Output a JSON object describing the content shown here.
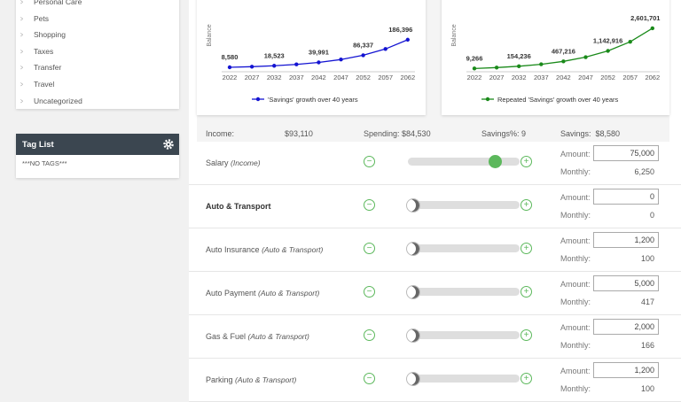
{
  "sidebar": {
    "categories": [
      "Personal Care",
      "Pets",
      "Shopping",
      "Taxes",
      "Transfer",
      "Travel",
      "Uncategorized"
    ],
    "tag_list": {
      "title": "Tag List",
      "empty": "***NO TAGS***"
    }
  },
  "chart_data": [
    {
      "type": "line",
      "y_label": "Balance",
      "categories": [
        "2022",
        "2027",
        "2032",
        "2037",
        "2042",
        "2047",
        "2052",
        "2057",
        "2062"
      ],
      "ylim": [
        0,
        500000
      ],
      "series": [
        {
          "name": "'Savings' growth over 40 years",
          "color": "#1414d2",
          "values": [
            8580,
            12607,
            18523,
            27215,
            39991,
            58760,
            86337,
            126852,
            186396
          ],
          "value_labels": [
            "8,580",
            null,
            "18,523",
            null,
            "39,991",
            null,
            "86,337",
            null,
            "186,396"
          ]
        }
      ]
    },
    {
      "type": "line",
      "y_label": "Balance",
      "categories": [
        "2022",
        "2027",
        "2032",
        "2037",
        "2042",
        "2047",
        "2052",
        "2057",
        "2062"
      ],
      "ylim": [
        0,
        5000000
      ],
      "series": [
        {
          "name": "Repeated 'Savings' growth over 40 years",
          "color": "#1a8a1a",
          "values": [
            9266,
            68000,
            154236,
            280000,
            467216,
            740000,
            1142916,
            1730000,
            2601701
          ],
          "value_labels": [
            "9,266",
            null,
            "154,236",
            null,
            "467,216",
            null,
            "1,142,916",
            null,
            "2,601,701"
          ]
        }
      ]
    }
  ],
  "summary": {
    "income_label": "Income:",
    "income": "$93,110",
    "spending": "Spending: $84,530",
    "savings_pct": "Savings%: 9",
    "savings": "Savings:  $8,580"
  },
  "amount_label": "Amount:",
  "monthly_label": "Monthly:",
  "rows": [
    {
      "name": "Salary",
      "category": "(Income)",
      "amount": "75,000",
      "monthly": "6,250"
    },
    {
      "name": "Auto & Transport",
      "amount": "0",
      "monthly": "0"
    },
    {
      "name": "Auto Insurance",
      "category": "(Auto & Transport)",
      "amount": "1,200",
      "monthly": "100"
    },
    {
      "name": "Auto Payment",
      "category": "(Auto & Transport)",
      "amount": "5,000",
      "monthly": "417"
    },
    {
      "name": "Gas & Fuel",
      "category": "(Auto & Transport)",
      "amount": "2,000",
      "monthly": "166"
    },
    {
      "name": "Parking",
      "category": "(Auto & Transport)",
      "amount": "1,200",
      "monthly": "100"
    }
  ]
}
